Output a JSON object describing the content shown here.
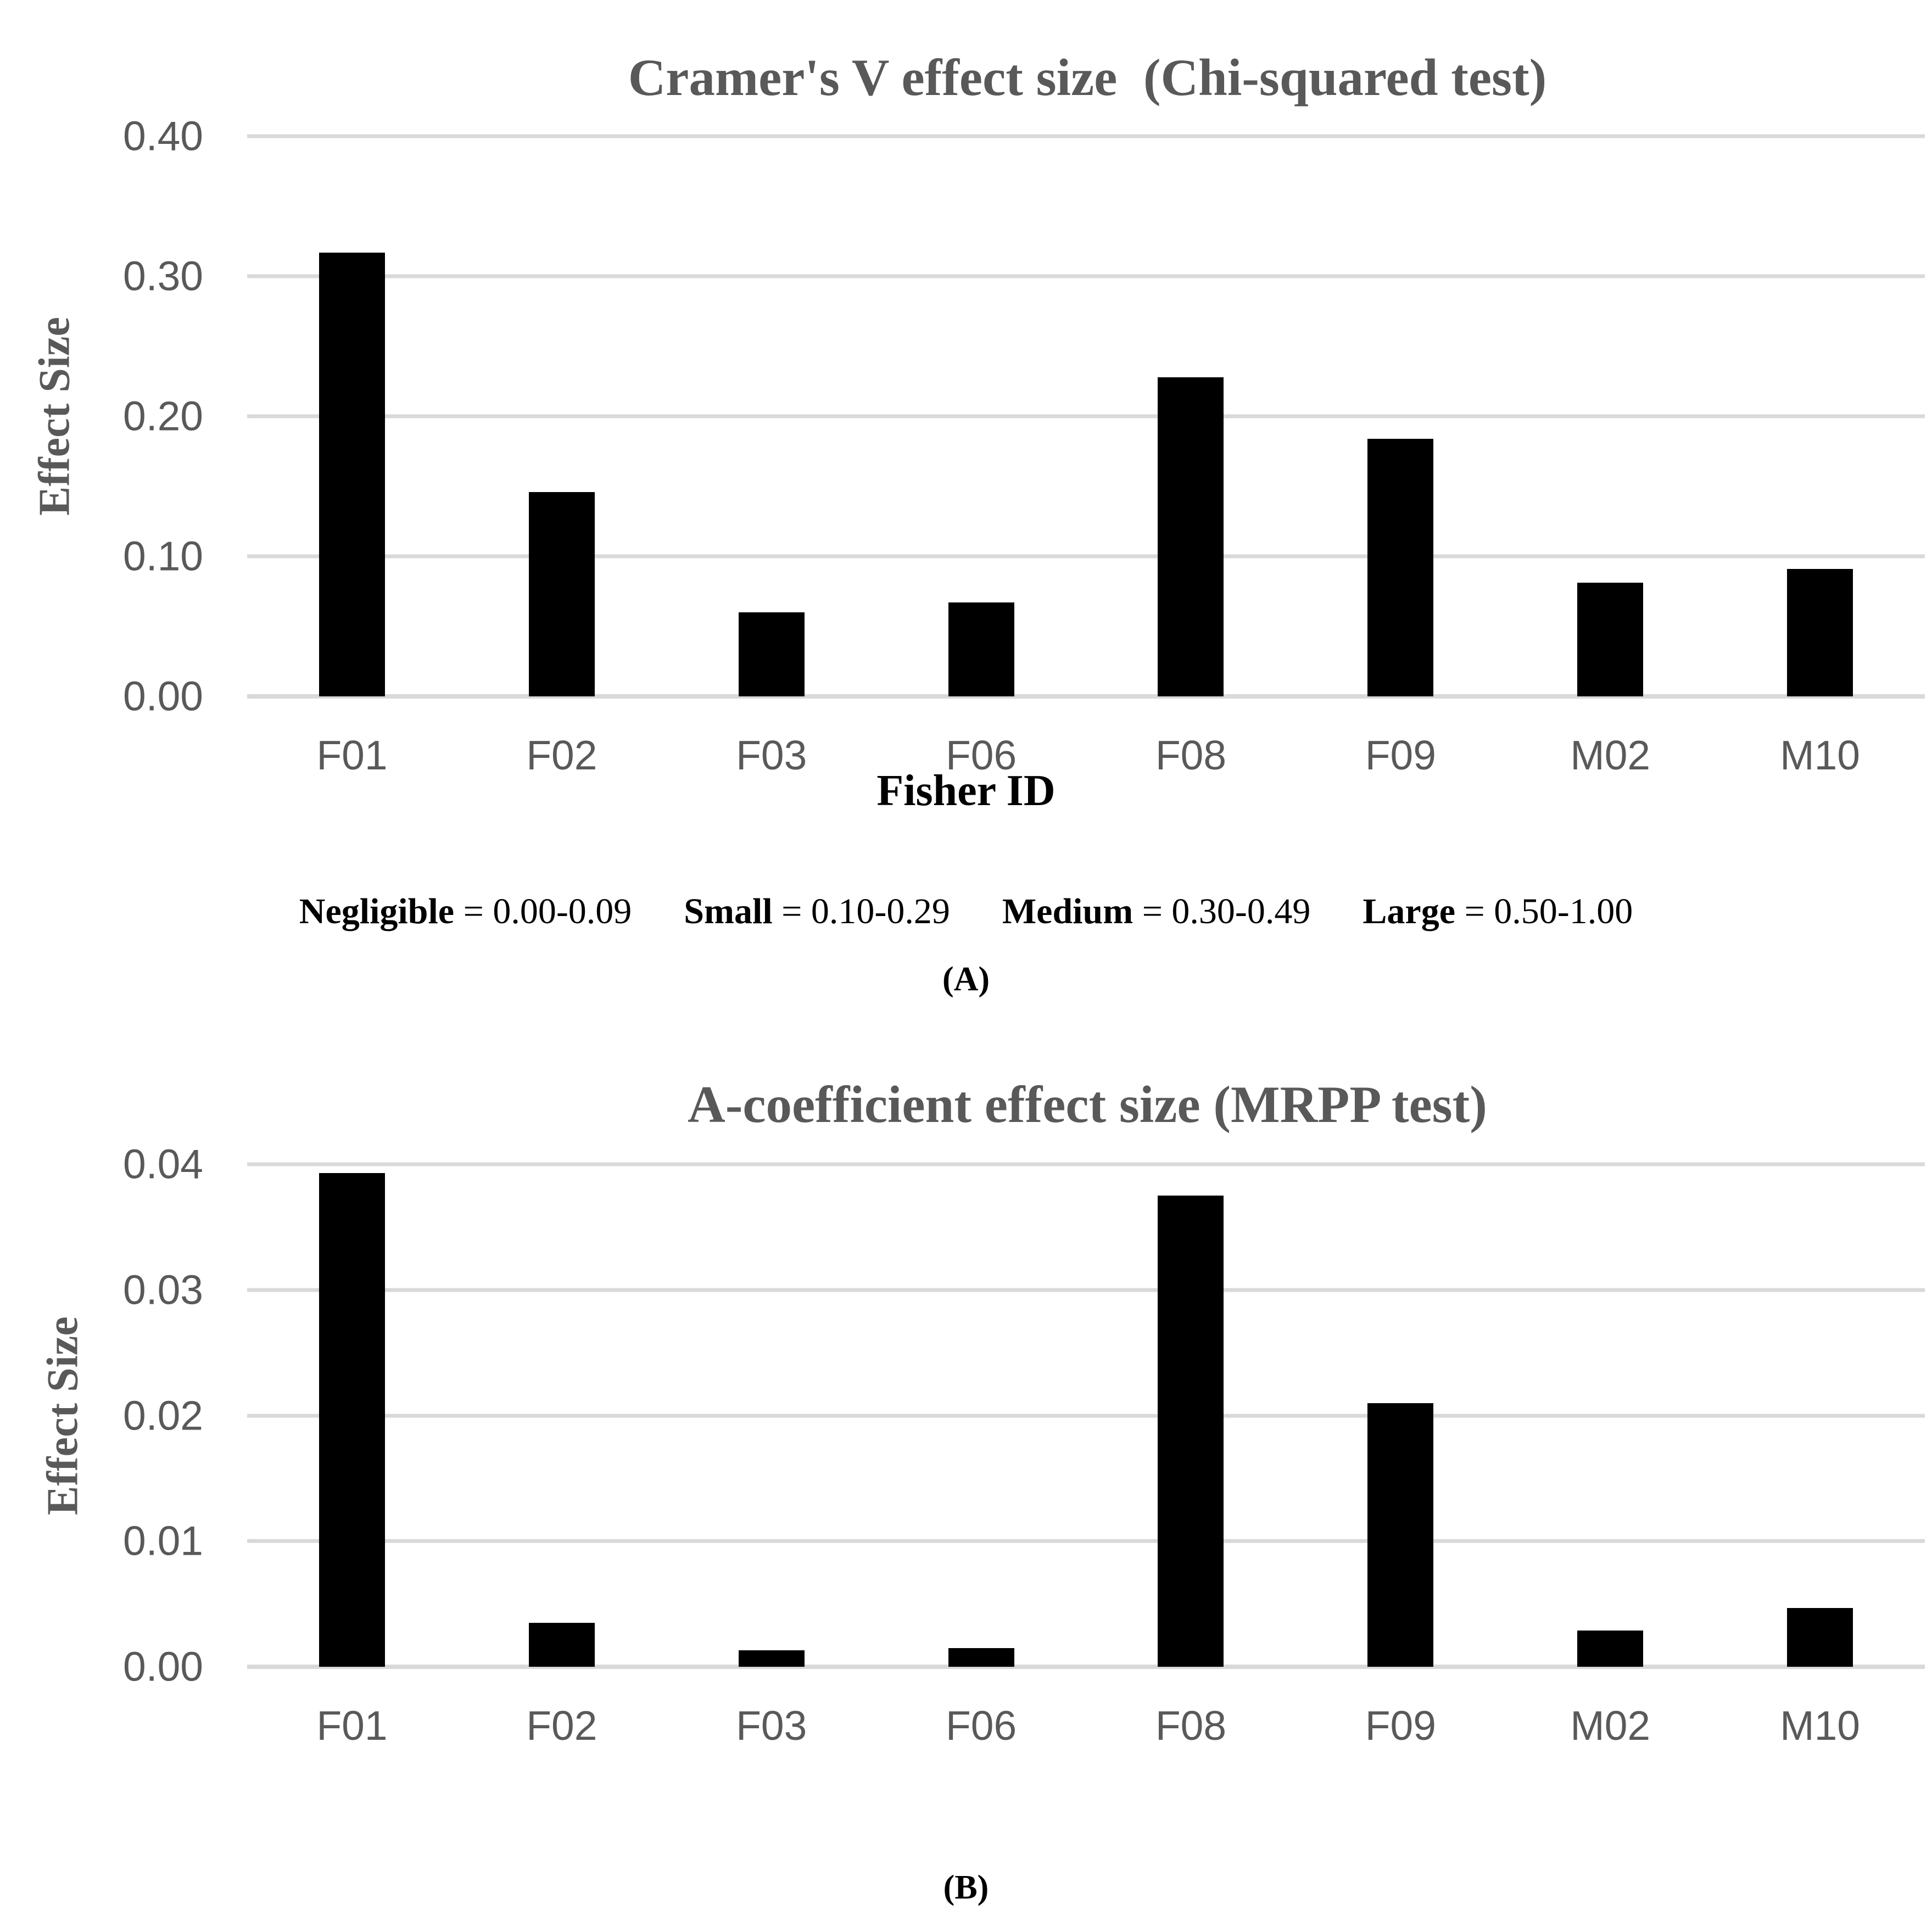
{
  "chart_data": [
    {
      "type": "bar",
      "title": "Cramer's V effect size  (Chi-squared test)",
      "categories": [
        "F01",
        "F02",
        "F03",
        "F06",
        "F08",
        "F09",
        "M02",
        "M10"
      ],
      "values": [
        0.317,
        0.146,
        0.06,
        0.067,
        0.228,
        0.184,
        0.081,
        0.091
      ],
      "xlabel": "Fisher ID",
      "ylabel": "Effect Size",
      "ylim": [
        0,
        0.4
      ],
      "yticks": [
        "0.00",
        "0.10",
        "0.20",
        "0.30",
        "0.40"
      ],
      "grid": "horizontal",
      "legend_position": "none",
      "bar_color": "#000000"
    },
    {
      "type": "bar",
      "title": "A-coefficient effect size (MRPP test)",
      "categories": [
        "F01",
        "F02",
        "F03",
        "F06",
        "F08",
        "F09",
        "M02",
        "M10"
      ],
      "values": [
        0.0393,
        0.0035,
        0.0013,
        0.0015,
        0.0375,
        0.021,
        0.0029,
        0.0047
      ],
      "xlabel": "",
      "ylabel": "Effect Size",
      "ylim": [
        0,
        0.04
      ],
      "yticks": [
        "0.00",
        "0.01",
        "0.02",
        "0.03",
        "0.04"
      ],
      "grid": "horizontal",
      "legend_position": "none",
      "bar_color": "#000000"
    }
  ],
  "legend": {
    "items": [
      {
        "term": "Negligible",
        "range": "= 0.00-0.09"
      },
      {
        "term": "Small",
        "range": "= 0.10-0.29"
      },
      {
        "term": "Medium",
        "range": "= 0.30-0.49"
      },
      {
        "term": "Large",
        "range": "= 0.50-1.00"
      }
    ]
  },
  "panel_labels": {
    "a": "(A)",
    "b": "(B)"
  },
  "colors": {
    "bar": "#000000",
    "gridline": "#d9d9d9",
    "title_gray": "#595959",
    "tick_gray": "#595959",
    "text_black": "#000000",
    "background": "#ffffff"
  }
}
